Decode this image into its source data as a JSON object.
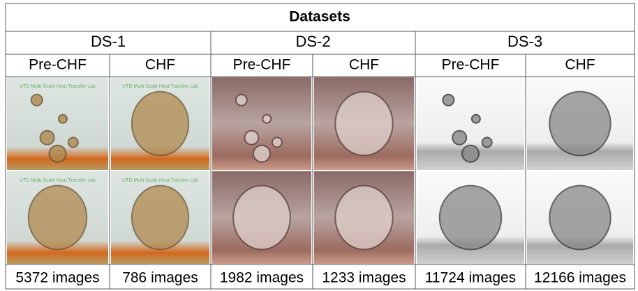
{
  "title": "Datasets",
  "datasets": [
    {
      "name": "DS-1",
      "watermark": "UTD Multi-Scale Heat Transfer Lab",
      "columns": [
        {
          "label": "Pre-CHF",
          "count": "5372 images"
        },
        {
          "label": "CHF",
          "count": "786 images"
        }
      ]
    },
    {
      "name": "DS-2",
      "columns": [
        {
          "label": "Pre-CHF",
          "count": "1982 images"
        },
        {
          "label": "CHF",
          "count": "1233 images"
        }
      ]
    },
    {
      "name": "DS-3",
      "columns": [
        {
          "label": "Pre-CHF",
          "count": "11724 images"
        },
        {
          "label": "CHF",
          "count": "12166 images"
        }
      ]
    }
  ]
}
